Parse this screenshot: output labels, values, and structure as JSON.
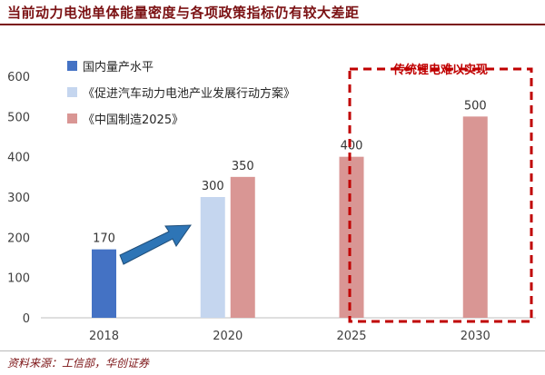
{
  "title": "当前动力电池单体能量密度与各项政策指标仍有较大差距",
  "source": "资料来源：工信部，华创证券",
  "annotation": "传统锂电难以实现",
  "colors": {
    "title": "#7b1113",
    "annotation": "#c00000"
  },
  "chart_data": {
    "type": "bar",
    "categories": [
      "2018",
      "2020",
      "2025",
      "2030"
    ],
    "ylim": [
      0,
      600
    ],
    "yticks": [
      0,
      100,
      200,
      300,
      400,
      500,
      600
    ],
    "xlabel": "",
    "ylabel": "",
    "grid": false,
    "legend_position": "top-left",
    "series": [
      {
        "name": "国内量产水平",
        "color": "#4472c4",
        "values": [
          170,
          null,
          null,
          null
        ]
      },
      {
        "name": "《促进汽车动力电池产业发展行动方案》",
        "color": "#c5d6ef",
        "values": [
          null,
          300,
          null,
          null
        ]
      },
      {
        "name": "《中国制造2025》",
        "color": "#d99694",
        "values": [
          null,
          350,
          400,
          500
        ]
      }
    ]
  }
}
